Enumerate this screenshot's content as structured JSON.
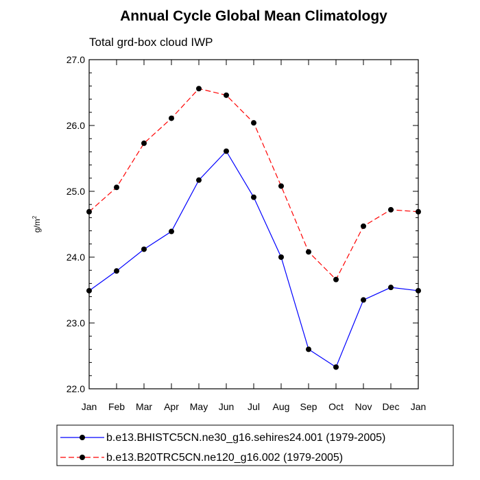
{
  "chart_data": {
    "type": "line",
    "title": "Annual Cycle Global Mean Climatology",
    "subtitle": "Total grd-box cloud IWP",
    "xlabel": "",
    "ylabel_base": "g/m",
    "ylabel_sup": "2",
    "ylim": [
      22.0,
      27.0
    ],
    "yticks": [
      "22.0",
      "23.0",
      "24.0",
      "25.0",
      "26.0",
      "27.0"
    ],
    "categories": [
      "Jan",
      "Feb",
      "Mar",
      "Apr",
      "May",
      "Jun",
      "Jul",
      "Aug",
      "Sep",
      "Oct",
      "Nov",
      "Dec",
      "Jan"
    ],
    "series": [
      {
        "name": "b.e13.BHISTC5CN.ne30_g16.sehires24.001 (1979-2005)",
        "color": "#0000ff",
        "dash": "solid",
        "values": [
          23.49,
          23.79,
          24.12,
          24.39,
          25.17,
          25.61,
          24.91,
          24.0,
          22.6,
          22.33,
          23.35,
          23.54,
          23.49
        ]
      },
      {
        "name": "b.e13.B20TRC5CN.ne120_g16.002 (1979-2005)",
        "color": "#ff0000",
        "dash": "dashed",
        "values": [
          24.69,
          25.06,
          25.73,
          26.11,
          26.56,
          26.46,
          26.04,
          25.08,
          24.08,
          23.66,
          24.47,
          24.72,
          24.69
        ]
      }
    ],
    "grid": false,
    "legend_position": "bottom"
  }
}
